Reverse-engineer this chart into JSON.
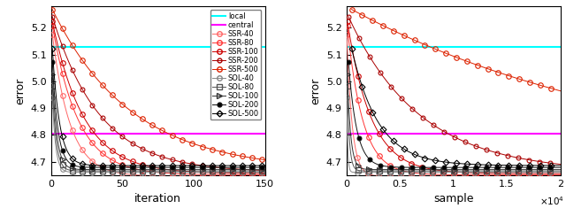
{
  "local_level": 5.13,
  "central_level": 4.805,
  "ylim": [
    4.65,
    5.28
  ],
  "xlim_iter": [
    0,
    150
  ],
  "xlim_sample": [
    0,
    20000
  ],
  "yticks": [
    4.7,
    4.8,
    4.9,
    5.0,
    5.1,
    5.2
  ],
  "xticks_iter": [
    0,
    50,
    100,
    150
  ],
  "xticks_sample": [
    0,
    5000,
    10000,
    15000,
    20000
  ],
  "xlabel_left": "iteration",
  "xlabel_right": "sample",
  "ylabel": "error",
  "local_color": "#00ffff",
  "central_color": "#ff00ff",
  "batch_sizes": [
    40,
    80,
    100,
    200,
    500
  ],
  "n_iter": 150,
  "n_samples": 20000,
  "ssr_color_40": "#ff6666",
  "ssr_color_80": "#ff3333",
  "ssr_color_100": "#cc0000",
  "ssr_color_200": "#aa0000",
  "ssr_color_500": "#dd2200",
  "sol_color_40": "#888888",
  "sol_color_80": "#555555",
  "sol_color_100": "#333333",
  "sol_color_200": "#111111",
  "sol_color_500": "#000000"
}
